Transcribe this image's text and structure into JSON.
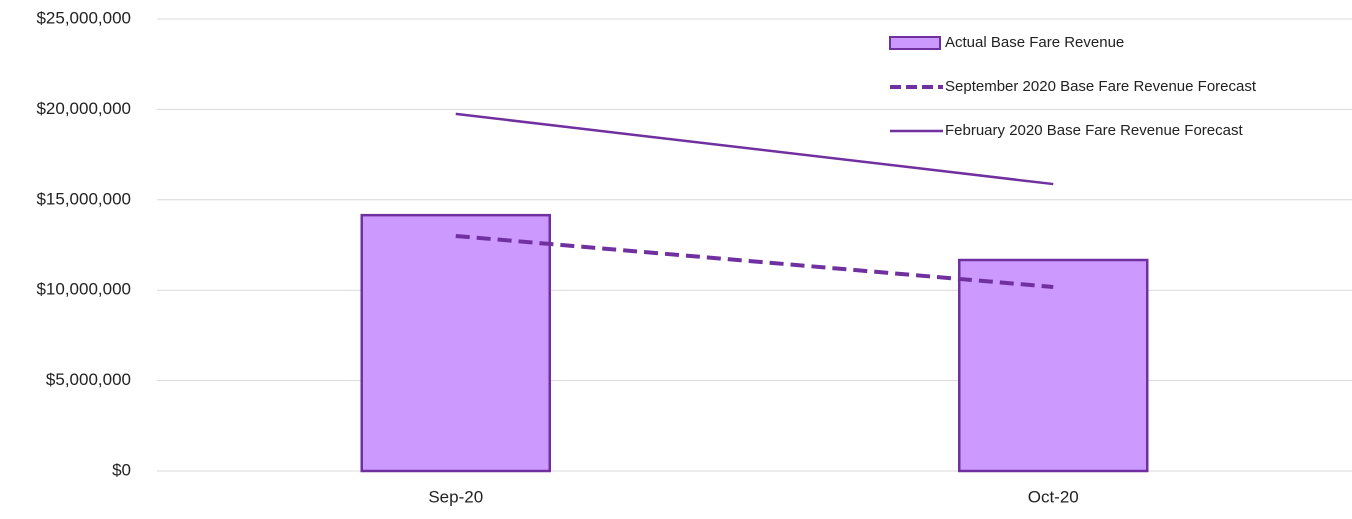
{
  "chart_data": {
    "type": "bar",
    "categories": [
      "Sep-20",
      "Oct-20"
    ],
    "series": [
      {
        "name": "Actual Base Fare Revenue",
        "type": "bar",
        "color": "#cc99ff",
        "stroke": "#7030a0",
        "values": [
          14150000,
          11670000
        ]
      },
      {
        "name": "September 2020 Base Fare Revenue Forecast",
        "type": "line",
        "dashed": true,
        "color": "#7030a0",
        "values": [
          13000000,
          10180000
        ]
      },
      {
        "name": "February 2020 Base Fare Revenue Forecast",
        "type": "line",
        "dashed": false,
        "color": "#7030a0",
        "values": [
          19750000,
          15870000
        ]
      }
    ],
    "ylim": [
      0,
      25000000
    ],
    "yticks": [
      {
        "value": 0,
        "label": "$0"
      },
      {
        "value": 5000000,
        "label": "$5,000,000"
      },
      {
        "value": 10000000,
        "label": "$10,000,000"
      },
      {
        "value": 15000000,
        "label": "$15,000,000"
      },
      {
        "value": 20000000,
        "label": "$20,000,000"
      },
      {
        "value": 25000000,
        "label": "$25,000,000"
      }
    ],
    "grid": true,
    "legend": "top-right"
  }
}
